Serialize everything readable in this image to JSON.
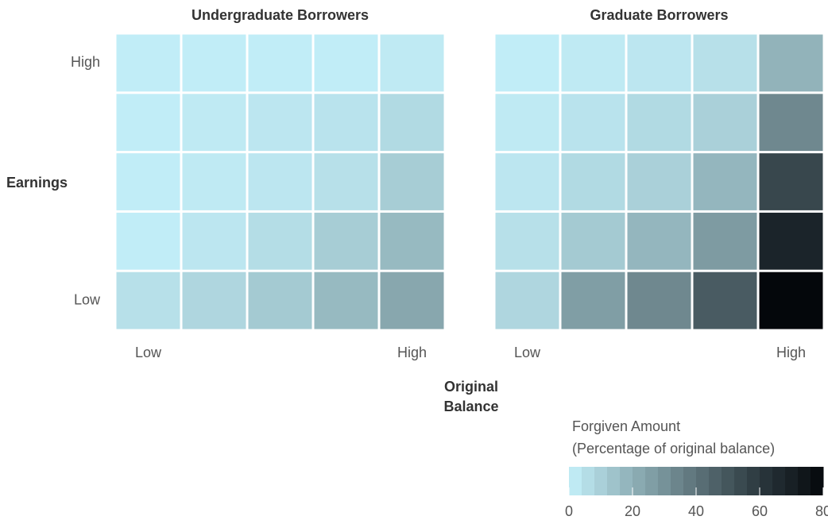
{
  "chart_data": {
    "type": "heatmap",
    "panels": [
      {
        "title": "Undergraduate Borrowers",
        "values": [
          [
            1,
            1,
            1,
            1,
            2
          ],
          [
            1,
            2,
            3,
            4,
            7
          ],
          [
            1,
            2,
            3,
            5,
            11
          ],
          [
            1,
            3,
            6,
            11,
            17
          ],
          [
            5,
            8,
            12,
            17,
            23
          ]
        ]
      },
      {
        "title": "Graduate Borrowers",
        "values": [
          [
            1,
            2,
            3,
            5,
            19
          ],
          [
            2,
            4,
            7,
            10,
            33
          ],
          [
            3,
            7,
            10,
            18,
            55
          ],
          [
            5,
            12,
            18,
            27,
            68
          ],
          [
            8,
            26,
            33,
            48,
            80
          ]
        ]
      }
    ],
    "y_label": "Earnings",
    "y_categories": [
      "High",
      null,
      null,
      null,
      "Low"
    ],
    "x_label": [
      "Original",
      "Balance"
    ],
    "x_categories": [
      "Low",
      null,
      null,
      null,
      "High"
    ],
    "colorbar_title": [
      "Forgiven Amount",
      "(Percentage of original balance)"
    ],
    "clim": [
      0,
      80
    ],
    "cticks": [
      0,
      20,
      40,
      60,
      80
    ],
    "colorbar_step": 4,
    "colorscale": [
      {
        "value": 0,
        "color": "#c4f0fa"
      },
      {
        "value": 20,
        "color": "#8fb0b7"
      },
      {
        "value": 40,
        "color": "#5d737a"
      },
      {
        "value": 60,
        "color": "#2b383e"
      },
      {
        "value": 80,
        "color": "#04070b"
      }
    ]
  }
}
